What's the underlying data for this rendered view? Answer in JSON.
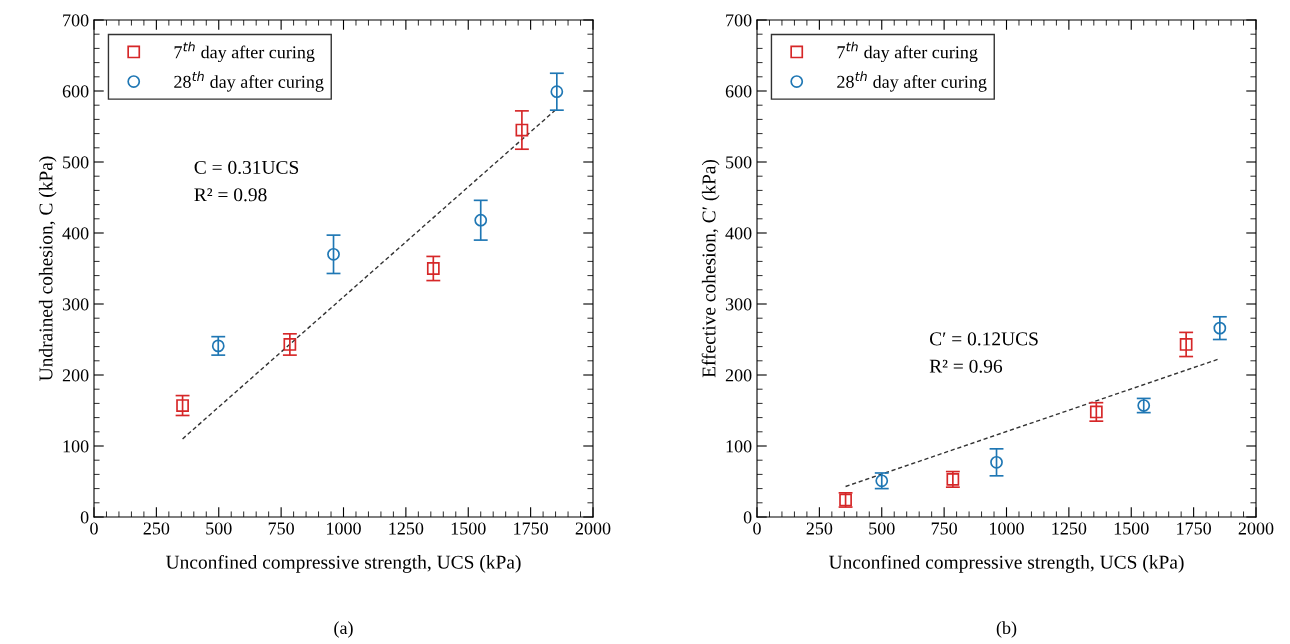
{
  "chart_data": [
    {
      "type": "scatter",
      "xlabel": "Unconfined compressive strength, UCS (kPa)",
      "ylabel": "Undrained cohesion, C (kPa)",
      "xlim": [
        0,
        2000
      ],
      "xticks": [
        0,
        250,
        500,
        750,
        1000,
        1250,
        1500,
        1750,
        2000
      ],
      "ylim": [
        0,
        700
      ],
      "yticks": [
        0,
        100,
        200,
        300,
        400,
        500,
        600,
        700
      ],
      "grid": false,
      "legend": "top left",
      "annotations": [
        "C = 0.31UCS",
        "R² = 0.98",
        "(a)"
      ],
      "series": [
        {
          "name": "7$^{th}$ day after curing",
          "color": "#d62728",
          "marker": "square",
          "x": [
            355,
            785,
            1360,
            1715
          ],
          "values": [
            157,
            243,
            350,
            545
          ],
          "errors": [
            14,
            15,
            17,
            27
          ]
        },
        {
          "name": "28$^{th}$ day after curing",
          "color": "#1f77b4",
          "marker": "circle",
          "x": [
            498,
            960,
            1550,
            1855
          ],
          "values": [
            241,
            370,
            418,
            599
          ],
          "errors": [
            13,
            27,
            28,
            26
          ]
        },
        {
          "type": "line",
          "color": "#333333",
          "line_style": "dashed",
          "marker": "none",
          "x": [
            355,
            1855
          ],
          "values": [
            110,
            575
          ]
        }
      ]
    },
    {
      "type": "scatter",
      "xlabel": "Unconfined compressive strength, UCS (kPa)",
      "ylabel": "Effective cohesion, C′ (kPa)",
      "xlim": [
        0,
        2000
      ],
      "xticks": [
        0,
        250,
        500,
        750,
        1000,
        1250,
        1500,
        1750,
        2000
      ],
      "ylim": [
        0,
        700
      ],
      "yticks": [
        0,
        100,
        200,
        300,
        400,
        500,
        600,
        700
      ],
      "grid": false,
      "legend": "top left",
      "annotations": [
        "C′ = 0.12UCS",
        "R² = 0.96",
        "(b)"
      ],
      "series": [
        {
          "name": "7$^{th}$ day after curing",
          "color": "#d62728",
          "marker": "square",
          "x": [
            355,
            785,
            1360,
            1720
          ],
          "values": [
            24,
            53,
            148,
            243
          ],
          "errors": [
            10,
            11,
            13,
            17
          ]
        },
        {
          "name": "28$^{th}$ day after curing",
          "color": "#1f77b4",
          "marker": "circle",
          "x": [
            500,
            960,
            1550,
            1855
          ],
          "values": [
            51,
            77,
            157,
            266
          ],
          "errors": [
            11,
            19,
            10,
            16
          ]
        },
        {
          "type": "line",
          "color": "#333333",
          "line_style": "dashed",
          "marker": "none",
          "x": [
            355,
            1855
          ],
          "values": [
            43,
            223
          ]
        }
      ]
    }
  ]
}
